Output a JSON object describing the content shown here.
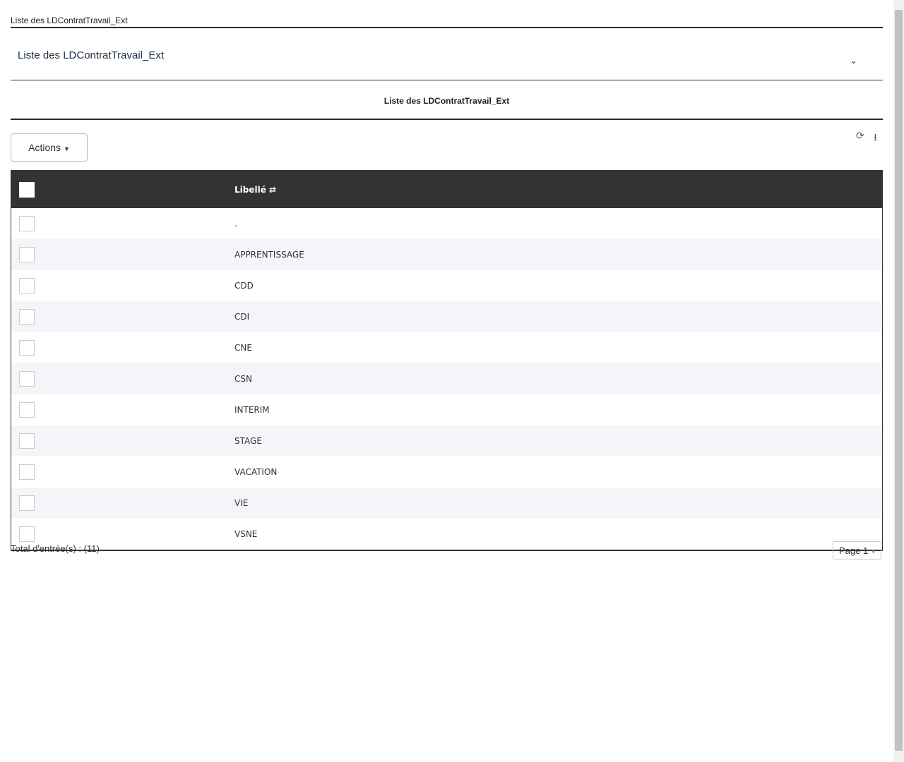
{
  "breadcrumb": "Liste des LDContratTravail_Ext",
  "panel_title": "Liste des LDContratTravail_Ext",
  "table_title": "Liste des LDContratTravail_Ext",
  "actions_label": "Actions",
  "icons": {
    "refresh": "refresh-icon",
    "download": "download-icon"
  },
  "table": {
    "header": "Libellé",
    "rows": [
      ".",
      "APPRENTISSAGE",
      "CDD",
      "CDI",
      "CNE",
      "CSN",
      "INTERIM",
      "STAGE",
      "VACATION",
      "VIE",
      "VSNE"
    ]
  },
  "total": "Total d'entrée(s) : (11)",
  "page": "Page 1"
}
